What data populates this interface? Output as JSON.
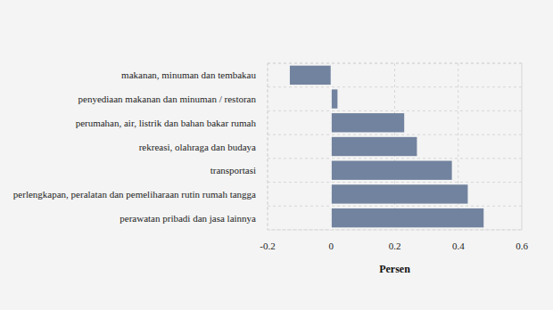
{
  "chart_data": {
    "type": "bar",
    "orientation": "horizontal",
    "categories": [
      "makanan, minuman dan tembakau",
      "penyediaan makanan dan minuman / restoran",
      "perumahan, air, listrik dan bahan bakar rumah",
      "rekreasi, olahraga dan budaya",
      "transportasi",
      "perlengkapan, peralatan dan pemeliharaan rutin rumah tangga",
      "perawatan pribadi dan jasa lainnya"
    ],
    "values": [
      -0.13,
      0.02,
      0.23,
      0.27,
      0.38,
      0.43,
      0.48
    ],
    "color": "#72839f",
    "x_label": "Persen",
    "xlim": [
      -0.2,
      0.6
    ],
    "xticks": [
      -0.2,
      0,
      0.2,
      0.4,
      0.6
    ],
    "grid": true
  }
}
